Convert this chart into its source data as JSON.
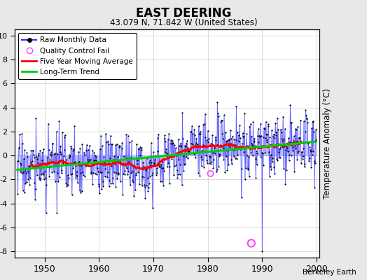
{
  "title": "EAST DEERING",
  "subtitle": "43.079 N, 71.842 W (United States)",
  "ylabel": "Temperature Anomaly (°C)",
  "xlabel_years": [
    1950,
    1960,
    1970,
    1980,
    1990,
    2000
  ],
  "ylim": [
    -8.5,
    10.5
  ],
  "yticks": [
    -8,
    -6,
    -4,
    -2,
    0,
    2,
    4,
    6,
    8,
    10
  ],
  "xlim": [
    1944.5,
    2000.5
  ],
  "bg_color": "#e8e8e8",
  "plot_bg": "#ffffff",
  "raw_color": "#3333ff",
  "raw_fill_color": "#aaaaff",
  "ma_color": "#ff0000",
  "trend_color": "#00cc00",
  "qc_color": "#ff44ff",
  "seed": 17
}
